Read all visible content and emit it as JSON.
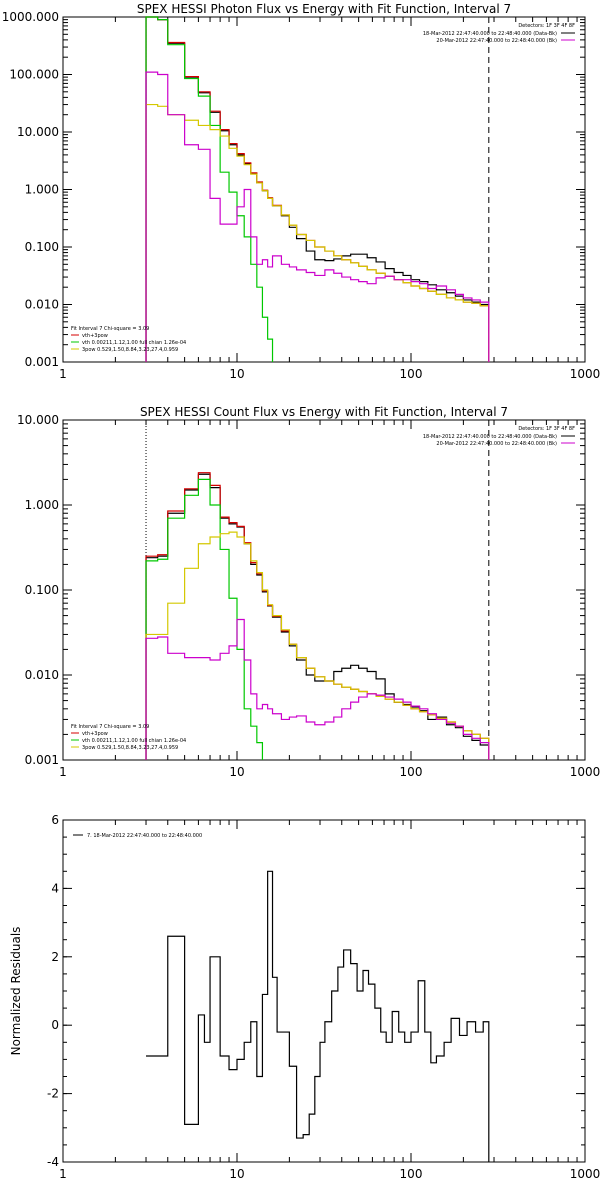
{
  "chart_data": [
    {
      "type": "line",
      "title": "SPEX HESSI Photon Flux vs Energy with Fit Function, Interval 7",
      "xscale": "log",
      "yscale": "log",
      "xlim": [
        1,
        1000
      ],
      "ylim": [
        0.001,
        1000
      ],
      "xticks": [
        "1",
        "10",
        "100",
        "1000"
      ],
      "yticks": [
        "0.001",
        "0.010",
        "0.100",
        "1.000",
        "10.000",
        "100.000",
        "1000.000"
      ],
      "legend_top_right": {
        "detectors": "Detectors: 1F 3F 4F 8F",
        "entries": [
          {
            "text": "18-Mar-2012 22:47:40.000 to 22:48:40.000 (Data-Bk)",
            "color": "#000000"
          },
          {
            "text": "20-Mar-2012 22:47:40.000 to 22:48:40.000 (Bk)",
            "color": "#cc00cc"
          }
        ]
      },
      "legend_bottom_left": {
        "header": "Fit Interval 7   Chi-square = 3.09",
        "entries": [
          {
            "text": "vth+3pow",
            "color": "#d40000"
          },
          {
            "text": "vth 0.00211,1.12,1.00  full chian 1.26e-04",
            "color": "#00c800"
          },
          {
            "text": "3pow 0.529,1.50,8.84,3.23,27.4,0.959",
            "color": "#d4c800"
          }
        ]
      },
      "vlines": [
        {
          "x": 3,
          "style": "dotted",
          "color": "#000000"
        },
        {
          "x": 280,
          "style": "dashed",
          "color": "#000000"
        }
      ],
      "series": [
        {
          "name": "18-Mar-2012 22:47:40.000 to 22:48:40.000 (Data-Bk)",
          "color": "#000000",
          "x": [
            3.0,
            3.5,
            4.0,
            5.0,
            6.0,
            7.0,
            8.0,
            9.0,
            10.0,
            11.0,
            12.0,
            13.0,
            14.0,
            15.0,
            16.0,
            18.0,
            20.0,
            22.0,
            25.0,
            28.0,
            32.0,
            36.0,
            40.0,
            45.0,
            50.0,
            56.0,
            63.0,
            71.0,
            80.0,
            90.0,
            100.0,
            112.0,
            125.0,
            140.0,
            160.0,
            180.0,
            200.0,
            224.0,
            250.0,
            280.0
          ],
          "y": [
            1000.0,
            900.0,
            350.0,
            90.0,
            48.0,
            22.0,
            10.5,
            6.0,
            4.0,
            2.8,
            1.9,
            1.3,
            0.95,
            0.7,
            0.52,
            0.35,
            0.22,
            0.14,
            0.085,
            0.06,
            0.058,
            0.062,
            0.07,
            0.075,
            0.075,
            0.065,
            0.055,
            0.042,
            0.036,
            0.032,
            0.027,
            0.025,
            0.022,
            0.018,
            0.016,
            0.014,
            0.012,
            0.011,
            0.01,
            0.01
          ]
        },
        {
          "name": "vth+3pow",
          "color": "#d40000",
          "x": [
            3.0,
            3.5,
            4.0,
            5.0,
            6.0,
            7.0,
            8.0,
            9.0,
            10.0,
            11.0,
            12.0,
            13.0,
            14.0,
            15.0,
            16.0,
            18.0,
            20.0,
            22.0,
            25.0,
            28.0,
            32.0,
            36.0,
            40.0,
            45.0,
            50.0,
            56.0,
            63.0,
            71.0,
            80.0,
            90.0,
            100.0,
            112.0,
            125.0,
            140.0,
            160.0,
            180.0,
            200.0,
            224.0,
            250.0,
            280.0
          ],
          "y": [
            1000.0,
            900.0,
            360.0,
            92.0,
            50.0,
            23.0,
            11.0,
            6.3,
            4.2,
            2.9,
            1.95,
            1.35,
            0.97,
            0.72,
            0.53,
            0.36,
            0.24,
            0.165,
            0.13,
            0.1,
            0.085,
            0.07,
            0.06,
            0.053,
            0.046,
            0.04,
            0.035,
            0.031,
            0.027,
            0.024,
            0.021,
            0.019,
            0.017,
            0.015,
            0.013,
            0.012,
            0.011,
            0.0105,
            0.0095,
            0.009
          ]
        },
        {
          "name": "vth 0.00211,1.12,1.00  full chian 1.26e-04",
          "color": "#00c800",
          "x": [
            3.0,
            3.5,
            4.0,
            5.0,
            6.0,
            7.0,
            8.0,
            9.0,
            10.0,
            11.0,
            12.0,
            13.0,
            14.0,
            15.0,
            16.0
          ],
          "y": [
            1000.0,
            900.0,
            330.0,
            85.0,
            42.0,
            13.0,
            2.0,
            0.9,
            0.35,
            0.15,
            0.05,
            0.02,
            0.006,
            0.0025,
            0.001
          ]
        },
        {
          "name": "3pow 0.529,1.50,8.84,3.23,27.4,0.959",
          "color": "#d4c800",
          "x": [
            3.0,
            3.5,
            4.0,
            5.0,
            6.0,
            7.0,
            8.0,
            9.0,
            10.0,
            11.0,
            12.0,
            13.0,
            14.0,
            15.0,
            16.0,
            18.0,
            20.0,
            22.0,
            25.0,
            28.0,
            32.0,
            36.0,
            40.0,
            45.0,
            50.0,
            56.0,
            63.0,
            71.0,
            80.0,
            90.0,
            100.0,
            112.0,
            125.0,
            140.0,
            160.0,
            180.0,
            200.0,
            224.0,
            250.0,
            280.0
          ],
          "y": [
            30.0,
            28.0,
            20.0,
            16.0,
            13.0,
            11.0,
            8.5,
            5.2,
            3.8,
            2.7,
            1.85,
            1.3,
            0.95,
            0.7,
            0.52,
            0.36,
            0.24,
            0.165,
            0.13,
            0.1,
            0.085,
            0.07,
            0.06,
            0.053,
            0.046,
            0.04,
            0.035,
            0.031,
            0.027,
            0.024,
            0.021,
            0.019,
            0.017,
            0.015,
            0.013,
            0.012,
            0.011,
            0.0105,
            0.0095,
            0.009
          ]
        },
        {
          "name": "20-Mar-2012 22:47:40.000 to 22:48:40.000 (Bk)",
          "color": "#cc00cc",
          "x": [
            3.0,
            3.5,
            4.0,
            5.0,
            6.0,
            7.0,
            8.0,
            9.0,
            10.0,
            11.0,
            12.0,
            13.0,
            14.0,
            15.0,
            16.0,
            18.0,
            20.0,
            22.0,
            25.0,
            28.0,
            32.0,
            36.0,
            40.0,
            45.0,
            50.0,
            56.0,
            63.0,
            71.0,
            80.0,
            90.0,
            100.0,
            112.0,
            125.0,
            140.0,
            160.0,
            180.0,
            200.0,
            224.0,
            250.0,
            280.0
          ],
          "y": [
            110.0,
            100.0,
            20.0,
            6.0,
            5.0,
            0.7,
            0.25,
            0.25,
            0.5,
            1.0,
            0.15,
            0.05,
            0.06,
            0.045,
            0.07,
            0.05,
            0.045,
            0.04,
            0.036,
            0.032,
            0.04,
            0.035,
            0.03,
            0.027,
            0.025,
            0.023,
            0.029,
            0.031,
            0.027,
            0.027,
            0.025,
            0.023,
            0.019,
            0.021,
            0.018,
            0.015,
            0.013,
            0.012,
            0.011,
            0.009
          ]
        }
      ]
    },
    {
      "type": "line",
      "title": "SPEX HESSI Count Flux vs Energy with Fit Function, Interval 7",
      "xscale": "log",
      "yscale": "log",
      "xlim": [
        1,
        1000
      ],
      "ylim": [
        0.001,
        10
      ],
      "xticks": [
        "1",
        "10",
        "100",
        "1000"
      ],
      "yticks": [
        "0.001",
        "0.010",
        "0.100",
        "1.000",
        "10.000"
      ],
      "legend_top_right": {
        "detectors": "Detectors: 1F 3F 4F 8F",
        "entries": [
          {
            "text": "18-Mar-2012 22:47:40.000 to 22:48:40.000 (Data-Bk)",
            "color": "#000000"
          },
          {
            "text": "20-Mar-2012 22:47:40.000 to 22:48:40.000 (Bk)",
            "color": "#cc00cc"
          }
        ]
      },
      "legend_bottom_left": {
        "header": "Fit Interval 7   Chi-square = 3.09",
        "entries": [
          {
            "text": "vth+3pow",
            "color": "#d40000"
          },
          {
            "text": "vth 0.00211,1.12,1.00  full chian 1.26e-04",
            "color": "#00c800"
          },
          {
            "text": "3pow 0.529,1.50,8.84,3.23,27.4,0.959",
            "color": "#d4c800"
          }
        ]
      },
      "vlines": [
        {
          "x": 3,
          "style": "dotted",
          "color": "#000000"
        },
        {
          "x": 280,
          "style": "dashed",
          "color": "#000000"
        }
      ],
      "series": [
        {
          "name": "18-Mar-2012 22:47:40.000 to 22:48:40.000 (Data-Bk)",
          "color": "#000000",
          "x": [
            3.0,
            3.5,
            4.0,
            5.0,
            6.0,
            7.0,
            8.0,
            9.0,
            10.0,
            11.0,
            12.0,
            13.0,
            14.0,
            15.0,
            16.0,
            18.0,
            20.0,
            22.0,
            25.0,
            28.0,
            32.0,
            36.0,
            40.0,
            45.0,
            50.0,
            56.0,
            63.0,
            71.0,
            80.0,
            90.0,
            100.0,
            112.0,
            125.0,
            140.0,
            160.0,
            180.0,
            200.0,
            224.0,
            250.0,
            280.0
          ],
          "y": [
            0.24,
            0.25,
            0.8,
            1.5,
            2.3,
            1.6,
            0.7,
            0.6,
            0.55,
            0.35,
            0.2,
            0.15,
            0.095,
            0.065,
            0.048,
            0.032,
            0.022,
            0.015,
            0.01,
            0.0085,
            0.0085,
            0.011,
            0.012,
            0.013,
            0.012,
            0.011,
            0.009,
            0.006,
            0.0048,
            0.0045,
            0.0042,
            0.0038,
            0.003,
            0.0032,
            0.0026,
            0.0024,
            0.0019,
            0.0017,
            0.0015,
            0.0015
          ]
        },
        {
          "name": "vth+3pow",
          "color": "#d40000",
          "x": [
            3.0,
            3.5,
            4.0,
            5.0,
            6.0,
            7.0,
            8.0,
            9.0,
            10.0,
            11.0,
            12.0,
            13.0,
            14.0,
            15.0,
            16.0,
            18.0,
            20.0,
            22.0,
            25.0,
            28.0,
            32.0,
            36.0,
            40.0,
            45.0,
            50.0,
            56.0,
            63.0,
            71.0,
            80.0,
            90.0,
            100.0,
            112.0,
            125.0,
            140.0,
            160.0,
            180.0,
            200.0,
            224.0,
            250.0,
            280.0
          ],
          "y": [
            0.25,
            0.26,
            0.85,
            1.55,
            2.4,
            1.7,
            0.72,
            0.62,
            0.56,
            0.36,
            0.21,
            0.155,
            0.098,
            0.066,
            0.049,
            0.033,
            0.023,
            0.016,
            0.012,
            0.0095,
            0.0085,
            0.0078,
            0.0072,
            0.0068,
            0.0064,
            0.006,
            0.0056,
            0.0052,
            0.0048,
            0.0044,
            0.004,
            0.0037,
            0.0034,
            0.0031,
            0.0028,
            0.0025,
            0.0022,
            0.002,
            0.0018,
            0.0016
          ]
        },
        {
          "name": "vth 0.00211,1.12,1.00  full chian 1.26e-04",
          "color": "#00c800",
          "x": [
            3.0,
            3.5,
            4.0,
            5.0,
            6.0,
            7.0,
            8.0,
            9.0,
            10.0,
            11.0,
            12.0,
            13.0,
            14.0
          ],
          "y": [
            0.22,
            0.23,
            0.7,
            1.3,
            2.0,
            1.0,
            0.3,
            0.08,
            0.02,
            0.004,
            0.0025,
            0.0016,
            0.001
          ]
        },
        {
          "name": "3pow 0.529,1.50,8.84,3.23,27.4,0.959",
          "color": "#d4c800",
          "x": [
            3.0,
            3.5,
            4.0,
            5.0,
            6.0,
            7.0,
            8.0,
            9.0,
            10.0,
            11.0,
            12.0,
            13.0,
            14.0,
            15.0,
            16.0,
            18.0,
            20.0,
            22.0,
            25.0,
            28.0,
            32.0,
            36.0,
            40.0,
            45.0,
            50.0,
            56.0,
            63.0,
            71.0,
            80.0,
            90.0,
            100.0,
            112.0,
            125.0,
            140.0,
            160.0,
            180.0,
            200.0,
            224.0,
            250.0,
            280.0
          ],
          "y": [
            0.03,
            0.03,
            0.07,
            0.18,
            0.35,
            0.42,
            0.46,
            0.48,
            0.42,
            0.35,
            0.22,
            0.16,
            0.1,
            0.067,
            0.05,
            0.034,
            0.023,
            0.016,
            0.012,
            0.0095,
            0.0085,
            0.0078,
            0.0072,
            0.0068,
            0.0064,
            0.006,
            0.0056,
            0.0052,
            0.0048,
            0.0044,
            0.004,
            0.0037,
            0.0034,
            0.0031,
            0.0028,
            0.0025,
            0.0022,
            0.002,
            0.0018,
            0.0016
          ]
        },
        {
          "name": "20-Mar-2012 22:47:40.000 to 22:48:40.000 (Bk)",
          "color": "#cc00cc",
          "x": [
            3.0,
            3.5,
            4.0,
            5.0,
            6.0,
            7.0,
            8.0,
            9.0,
            10.0,
            11.0,
            12.0,
            13.0,
            14.0,
            15.0,
            16.0,
            18.0,
            20.0,
            22.0,
            25.0,
            28.0,
            32.0,
            36.0,
            40.0,
            45.0,
            50.0,
            56.0,
            63.0,
            71.0,
            80.0,
            90.0,
            100.0,
            112.0,
            125.0,
            140.0,
            160.0,
            180.0,
            200.0,
            224.0,
            250.0,
            280.0
          ],
          "y": [
            0.027,
            0.028,
            0.018,
            0.016,
            0.016,
            0.015,
            0.018,
            0.022,
            0.045,
            0.015,
            0.006,
            0.004,
            0.0045,
            0.004,
            0.0035,
            0.003,
            0.0032,
            0.0033,
            0.0028,
            0.0026,
            0.0028,
            0.0032,
            0.004,
            0.0048,
            0.0055,
            0.006,
            0.0058,
            0.0055,
            0.0052,
            0.0048,
            0.0043,
            0.004,
            0.0035,
            0.003,
            0.0027,
            0.0025,
            0.002,
            0.0018,
            0.0016,
            0.0012
          ]
        }
      ]
    },
    {
      "type": "line",
      "title": "",
      "ylabel": "Normalized Residuals",
      "xscale": "log",
      "xlim": [
        1,
        1000
      ],
      "ylim": [
        -4,
        6
      ],
      "xticks": [
        "1",
        "10",
        "100",
        "1000"
      ],
      "yticks": [
        "-4",
        "-2",
        "0",
        "2",
        "4",
        "6"
      ],
      "legend": "7. 18-Mar-2012 22:47:40.000 to 22:48:40.000",
      "series": [
        {
          "name": "7. 18-Mar-2012 22:47:40.000 to 22:48:40.000",
          "color": "#000000",
          "x": [
            3.0,
            4.0,
            5.0,
            6.0,
            6.5,
            7.0,
            8.0,
            9.0,
            10.0,
            11.0,
            12.0,
            13.0,
            14.0,
            15.0,
            16.0,
            17.0,
            18.0,
            20.0,
            22.0,
            24.0,
            26.0,
            28.0,
            30.0,
            32.0,
            35.0,
            38.0,
            41.0,
            45.0,
            49.0,
            53.0,
            57.0,
            62.0,
            67.0,
            72.0,
            78.0,
            85.0,
            92.0,
            100.0,
            110.0,
            120.0,
            130.0,
            140.0,
            155.0,
            170.0,
            190.0,
            210.0,
            235.0,
            260.0,
            280.0
          ],
          "y": [
            -0.9,
            2.6,
            -2.9,
            0.3,
            -0.5,
            2.0,
            -0.9,
            -1.3,
            -1.0,
            -0.5,
            0.1,
            -1.5,
            0.9,
            4.5,
            1.4,
            -0.2,
            -0.2,
            -1.2,
            -3.3,
            -3.2,
            -2.6,
            -1.5,
            -0.5,
            0.1,
            1.0,
            1.7,
            2.2,
            1.8,
            1.0,
            1.6,
            1.2,
            0.5,
            -0.2,
            -0.5,
            0.4,
            -0.2,
            -0.5,
            -0.2,
            1.3,
            -0.2,
            -1.1,
            -0.9,
            -0.5,
            0.2,
            -0.3,
            0.1,
            -0.2,
            0.1,
            -4.0
          ]
        }
      ]
    }
  ]
}
